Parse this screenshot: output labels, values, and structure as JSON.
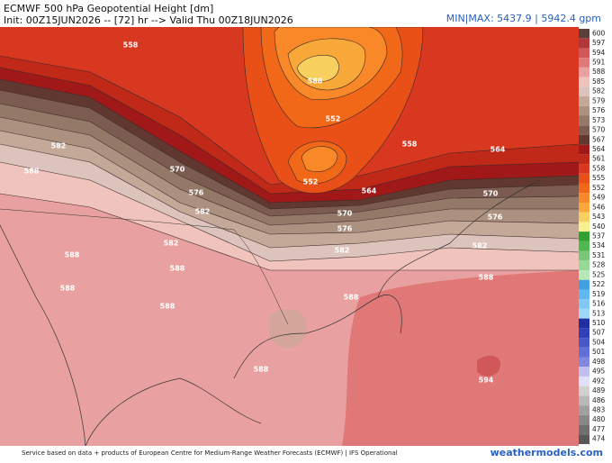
{
  "header": {
    "title": "ECMWF 500 hPa Geopotential Height [dm]",
    "subtitle": "Init: 00Z15JUN2026 -- [72] hr --> Valid Thu 00Z18JUN2026",
    "minmax": "MIN|MAX: 5437.9 | 5942.4 gpm"
  },
  "colorbar": {
    "levels": [
      {
        "label": "600",
        "color": "#5a4038"
      },
      {
        "label": "597",
        "color": "#b03838"
      },
      {
        "label": "594",
        "color": "#d05858"
      },
      {
        "label": "591",
        "color": "#e07878"
      },
      {
        "label": "588",
        "color": "#e8a0a0"
      },
      {
        "label": "585",
        "color": "#f0c4bc"
      },
      {
        "label": "582",
        "color": "#dcc4bc"
      },
      {
        "label": "579",
        "color": "#c4a898"
      },
      {
        "label": "576",
        "color": "#ac9080"
      },
      {
        "label": "573",
        "color": "#947868"
      },
      {
        "label": "570",
        "color": "#7c5c50"
      },
      {
        "label": "567",
        "color": "#603830"
      },
      {
        "label": "564",
        "color": "#a01818"
      },
      {
        "label": "561",
        "color": "#c02818"
      },
      {
        "label": "558",
        "color": "#d83820"
      },
      {
        "label": "555",
        "color": "#e85018"
      },
      {
        "label": "552",
        "color": "#f06818"
      },
      {
        "label": "549",
        "color": "#f88828"
      },
      {
        "label": "546",
        "color": "#f8a838"
      },
      {
        "label": "543",
        "color": "#f8d060"
      },
      {
        "label": "540",
        "color": "#f8f090"
      },
      {
        "label": "537",
        "color": "#30a030"
      },
      {
        "label": "534",
        "color": "#50b850"
      },
      {
        "label": "531",
        "color": "#78c878"
      },
      {
        "label": "528",
        "color": "#98d898"
      },
      {
        "label": "525",
        "color": "#b8e8b8"
      },
      {
        "label": "522",
        "color": "#40a0e0"
      },
      {
        "label": "519",
        "color": "#60b8f0"
      },
      {
        "label": "516",
        "color": "#80c8f8"
      },
      {
        "label": "513",
        "color": "#a0d8f8"
      },
      {
        "label": "510",
        "color": "#2030a0"
      },
      {
        "label": "507",
        "color": "#3040b8"
      },
      {
        "label": "504",
        "color": "#4858c8"
      },
      {
        "label": "501",
        "color": "#6070d8"
      },
      {
        "label": "498",
        "color": "#8088e0"
      },
      {
        "label": "495",
        "color": "#c0c0f0"
      },
      {
        "label": "492",
        "color": "#e0e0f8"
      },
      {
        "label": "489",
        "color": "#d0d0d0"
      },
      {
        "label": "486",
        "color": "#b8b8b8"
      },
      {
        "label": "483",
        "color": "#a0a0a0"
      },
      {
        "label": "480",
        "color": "#888888"
      },
      {
        "label": "477",
        "color": "#707070"
      },
      {
        "label": "474",
        "color": "#585858"
      }
    ]
  },
  "map": {
    "contour_labels": [
      "558",
      "588",
      "552",
      "582",
      "588",
      "570",
      "576",
      "582",
      "552",
      "558",
      "564",
      "564",
      "570",
      "570",
      "576",
      "576",
      "582",
      "588",
      "582",
      "582",
      "588",
      "588",
      "588",
      "588",
      "588",
      "588",
      "594"
    ]
  },
  "footer": {
    "credit": "Service based on data + products of European Centre for Medium-Range Weather Forecasts (ECMWF) | IFS Operational",
    "brand": "weathermodels.com"
  }
}
